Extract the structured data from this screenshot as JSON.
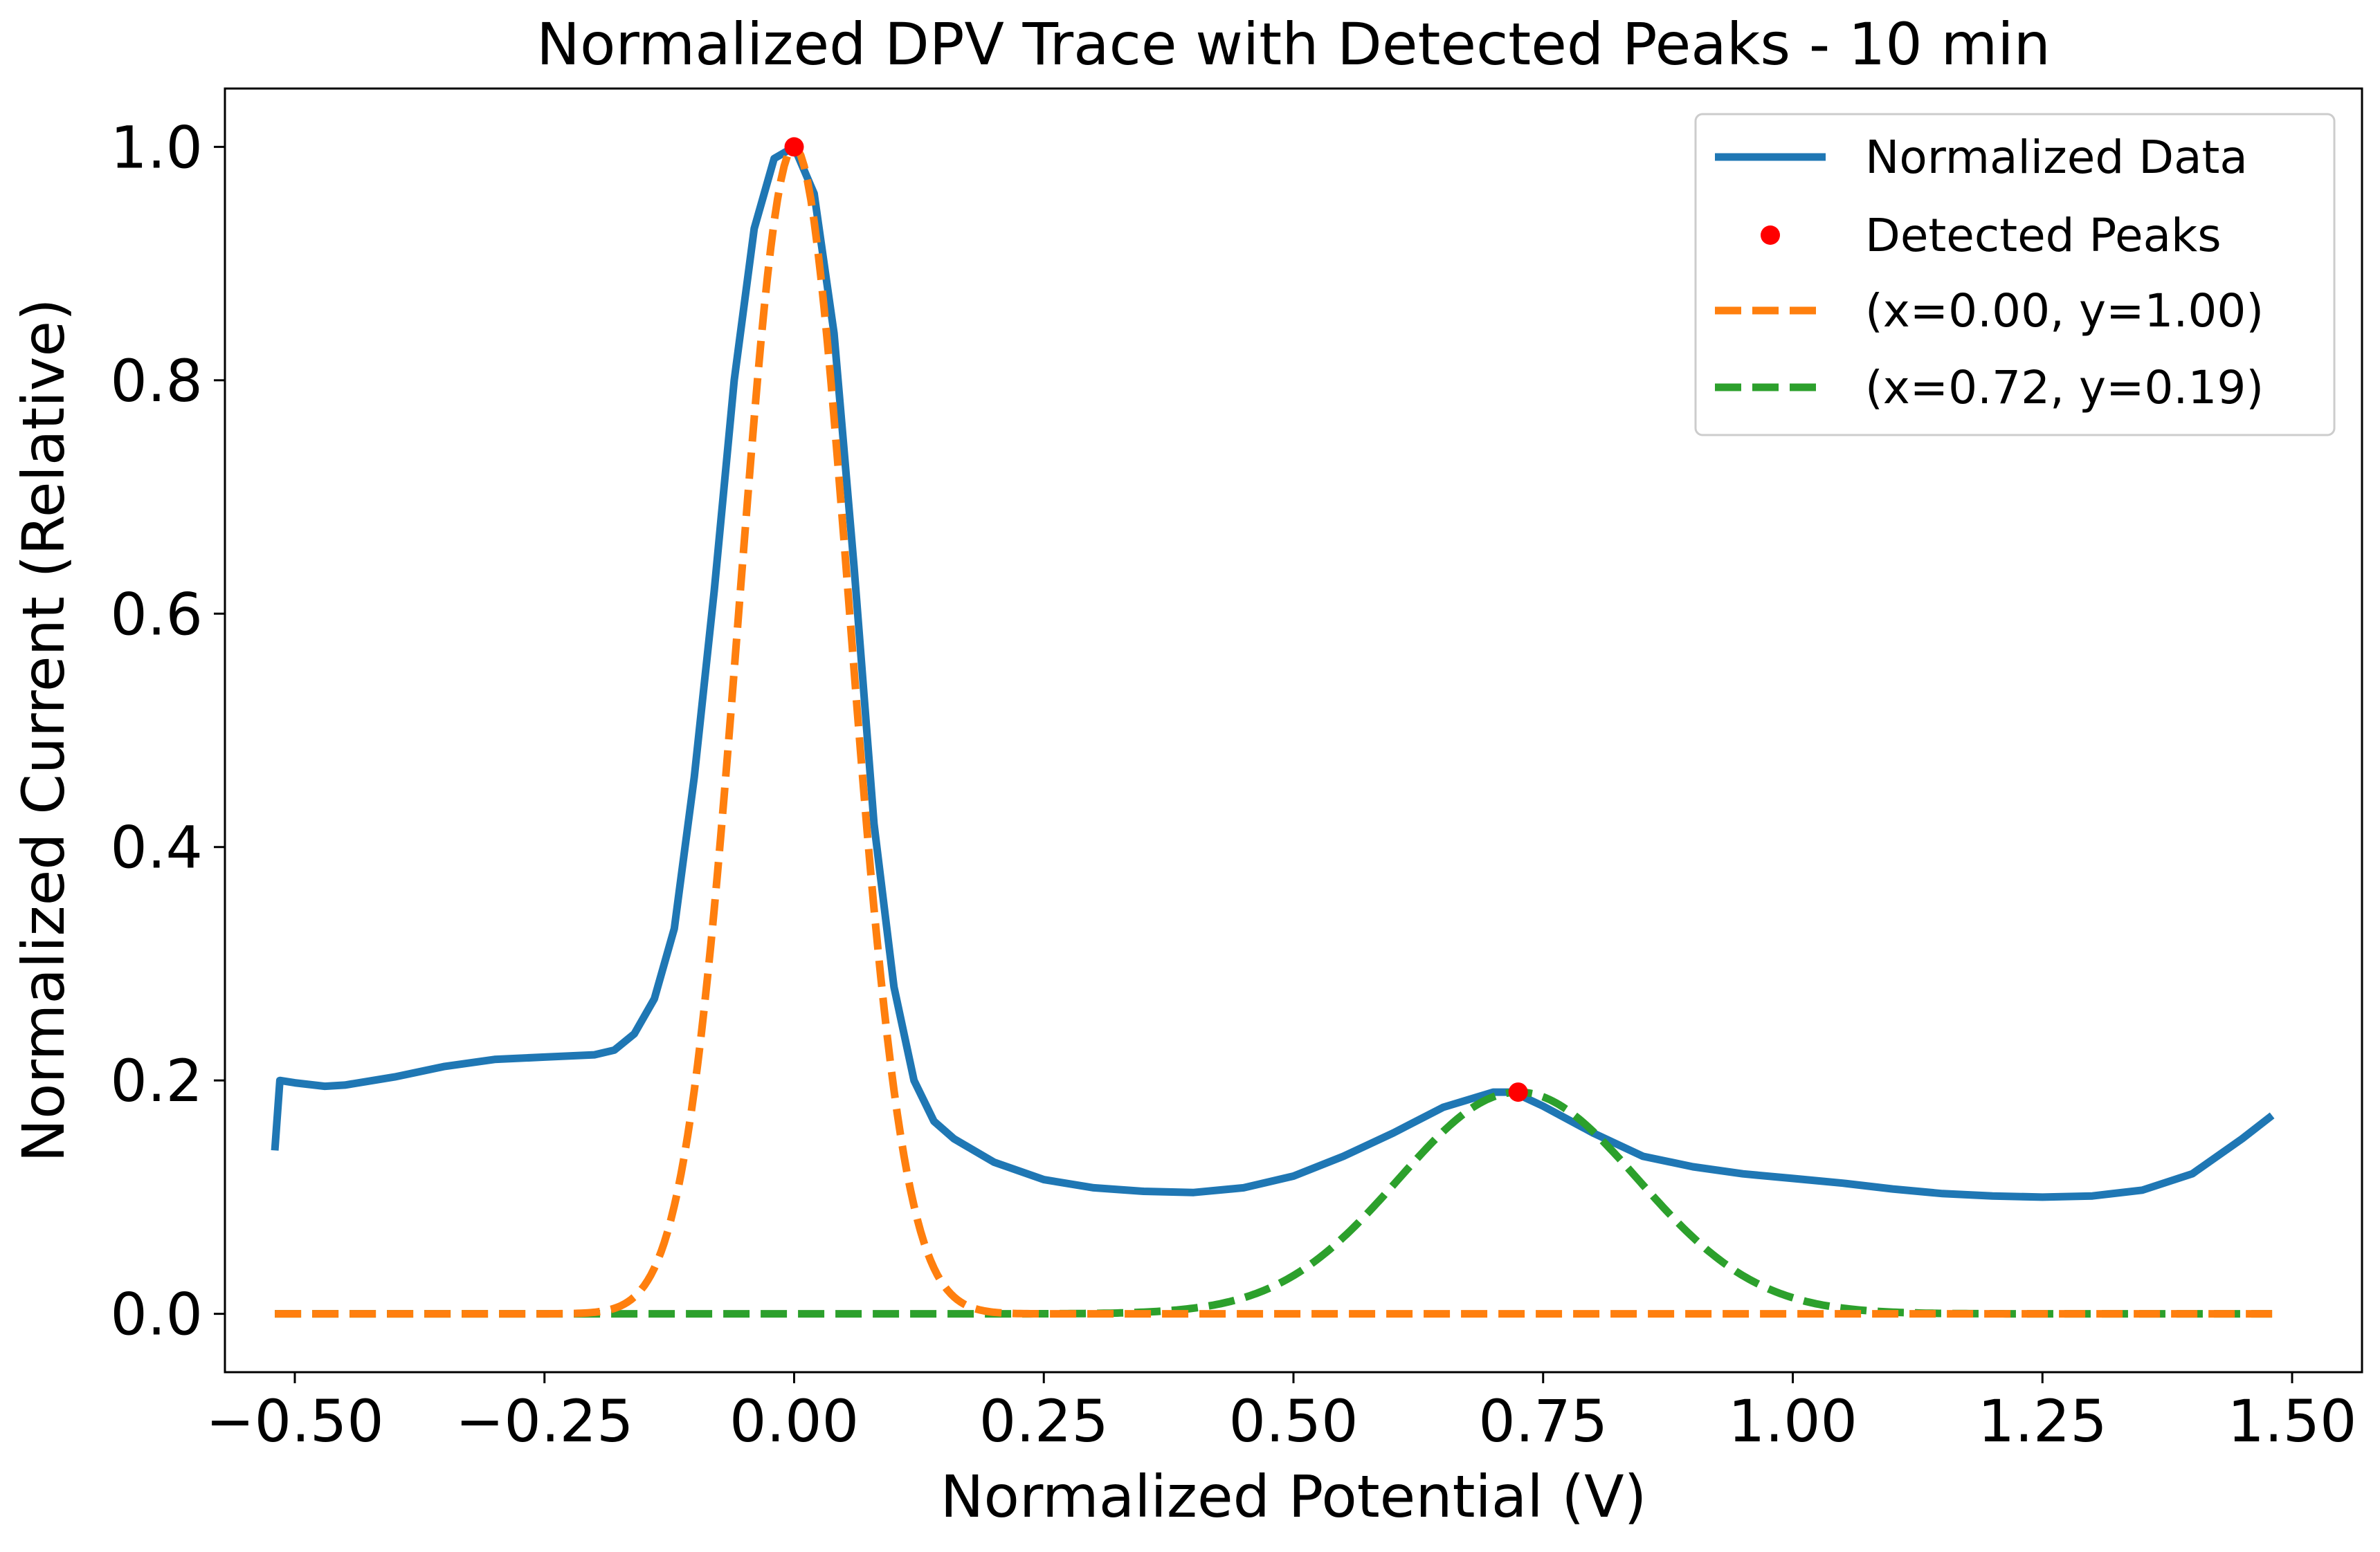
{
  "chart_data": {
    "type": "line",
    "title": "Normalized DPV Trace with Detected Peaks - 10 min",
    "xlabel": "Normalized Potential (V)",
    "ylabel": "Normalized Current (Relative)",
    "xlim": [
      -0.57,
      1.57
    ],
    "ylim": [
      -0.05,
      1.05
    ],
    "xticks": [
      -0.5,
      -0.25,
      0.0,
      0.25,
      0.5,
      0.75,
      1.0,
      1.25,
      1.5
    ],
    "xtick_labels": [
      "−0.50",
      "−0.25",
      "0.00",
      "0.25",
      "0.50",
      "0.75",
      "1.00",
      "1.25",
      "1.50"
    ],
    "yticks": [
      0.0,
      0.2,
      0.4,
      0.6,
      0.8,
      1.0
    ],
    "ytick_labels": [
      "0.0",
      "0.2",
      "0.4",
      "0.6",
      "0.8",
      "1.0"
    ],
    "grid": false,
    "legend_position": "top-right",
    "series": [
      {
        "name": "Normalized Data",
        "style": "solid",
        "color": "#1f77b4",
        "x": [
          -0.52,
          -0.515,
          -0.5,
          -0.47,
          -0.45,
          -0.4,
          -0.35,
          -0.3,
          -0.25,
          -0.2,
          -0.18,
          -0.16,
          -0.14,
          -0.12,
          -0.1,
          -0.08,
          -0.06,
          -0.04,
          -0.02,
          0.0,
          0.02,
          0.04,
          0.06,
          0.08,
          0.1,
          0.12,
          0.14,
          0.16,
          0.18,
          0.2,
          0.25,
          0.3,
          0.35,
          0.4,
          0.45,
          0.5,
          0.55,
          0.6,
          0.65,
          0.7,
          0.72,
          0.75,
          0.8,
          0.85,
          0.9,
          0.95,
          1.0,
          1.05,
          1.1,
          1.15,
          1.2,
          1.25,
          1.3,
          1.35,
          1.4,
          1.45,
          1.48
        ],
        "y": [
          0.14,
          0.2,
          0.198,
          0.195,
          0.196,
          0.203,
          0.212,
          0.218,
          0.22,
          0.222,
          0.226,
          0.24,
          0.27,
          0.33,
          0.46,
          0.62,
          0.8,
          0.93,
          0.99,
          1.0,
          0.96,
          0.84,
          0.64,
          0.42,
          0.28,
          0.2,
          0.165,
          0.15,
          0.14,
          0.13,
          0.115,
          0.108,
          0.105,
          0.104,
          0.108,
          0.118,
          0.135,
          0.155,
          0.177,
          0.19,
          0.19,
          0.178,
          0.155,
          0.135,
          0.126,
          0.12,
          0.116,
          0.112,
          0.107,
          0.103,
          0.101,
          0.1,
          0.101,
          0.106,
          0.12,
          0.15,
          0.17
        ]
      },
      {
        "name": "(x=0.00, y=1.00)",
        "style": "dashed",
        "color": "#ff7f0e",
        "fit": {
          "center": 0.0,
          "amplitude": 1.0,
          "sigma": 0.055
        },
        "x_range": [
          -0.52,
          1.48
        ]
      },
      {
        "name": "(x=0.72, y=0.19)",
        "style": "dashed",
        "color": "#2ca02c",
        "fit": {
          "center": 0.725,
          "amplitude": 0.19,
          "sigma": 0.12
        },
        "x_range": [
          -0.52,
          1.48
        ]
      }
    ],
    "peaks": {
      "name": "Detected Peaks",
      "color": "#ff0000",
      "points": [
        {
          "x": 0.0,
          "y": 1.0
        },
        {
          "x": 0.725,
          "y": 0.19
        }
      ]
    }
  }
}
